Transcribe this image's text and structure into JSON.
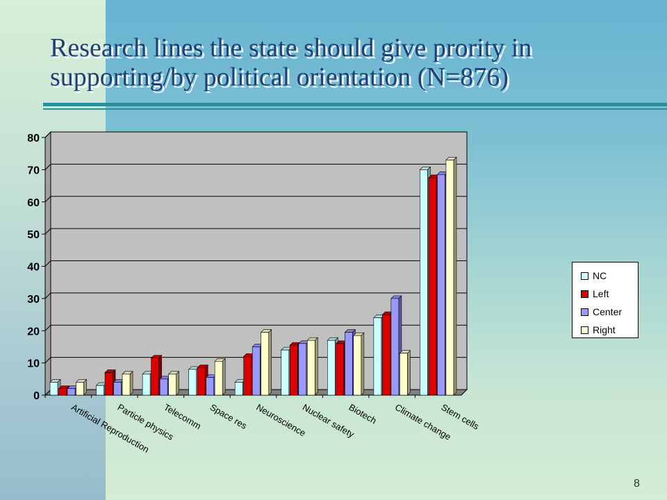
{
  "slide": {
    "title": "Research lines the state should give prority in supporting/by political orientation (N=876)",
    "page_number": "8"
  },
  "chart_data": {
    "type": "bar",
    "title": "",
    "xlabel": "",
    "ylabel": "",
    "ylim": [
      0,
      80
    ],
    "yticks": [
      0,
      10,
      20,
      30,
      40,
      50,
      60,
      70,
      80
    ],
    "grid": true,
    "legend_position": "right",
    "categories": [
      "Artificial Reproduction",
      "Particle physics",
      "Telecomm",
      "Space res",
      "Neuroscience",
      "Nuclear safety",
      "Biotech",
      "Climate change",
      "Stem cells"
    ],
    "series": [
      {
        "name": "NC",
        "color": "#ccffff",
        "values": [
          4,
          3,
          6.5,
          8,
          4,
          14,
          17,
          24,
          70
        ]
      },
      {
        "name": "Left",
        "color": "#dd0000",
        "values": [
          2,
          7,
          11.5,
          8.5,
          12,
          15.5,
          16,
          25,
          67.5
        ]
      },
      {
        "name": "Center",
        "color": "#9999ff",
        "values": [
          2,
          4,
          5,
          5.5,
          15,
          16,
          19.5,
          30,
          68.5
        ]
      },
      {
        "name": "Right",
        "color": "#ffffcc",
        "values": [
          4,
          6.5,
          6.5,
          10.5,
          19.5,
          17,
          18.5,
          13,
          73
        ]
      }
    ]
  }
}
